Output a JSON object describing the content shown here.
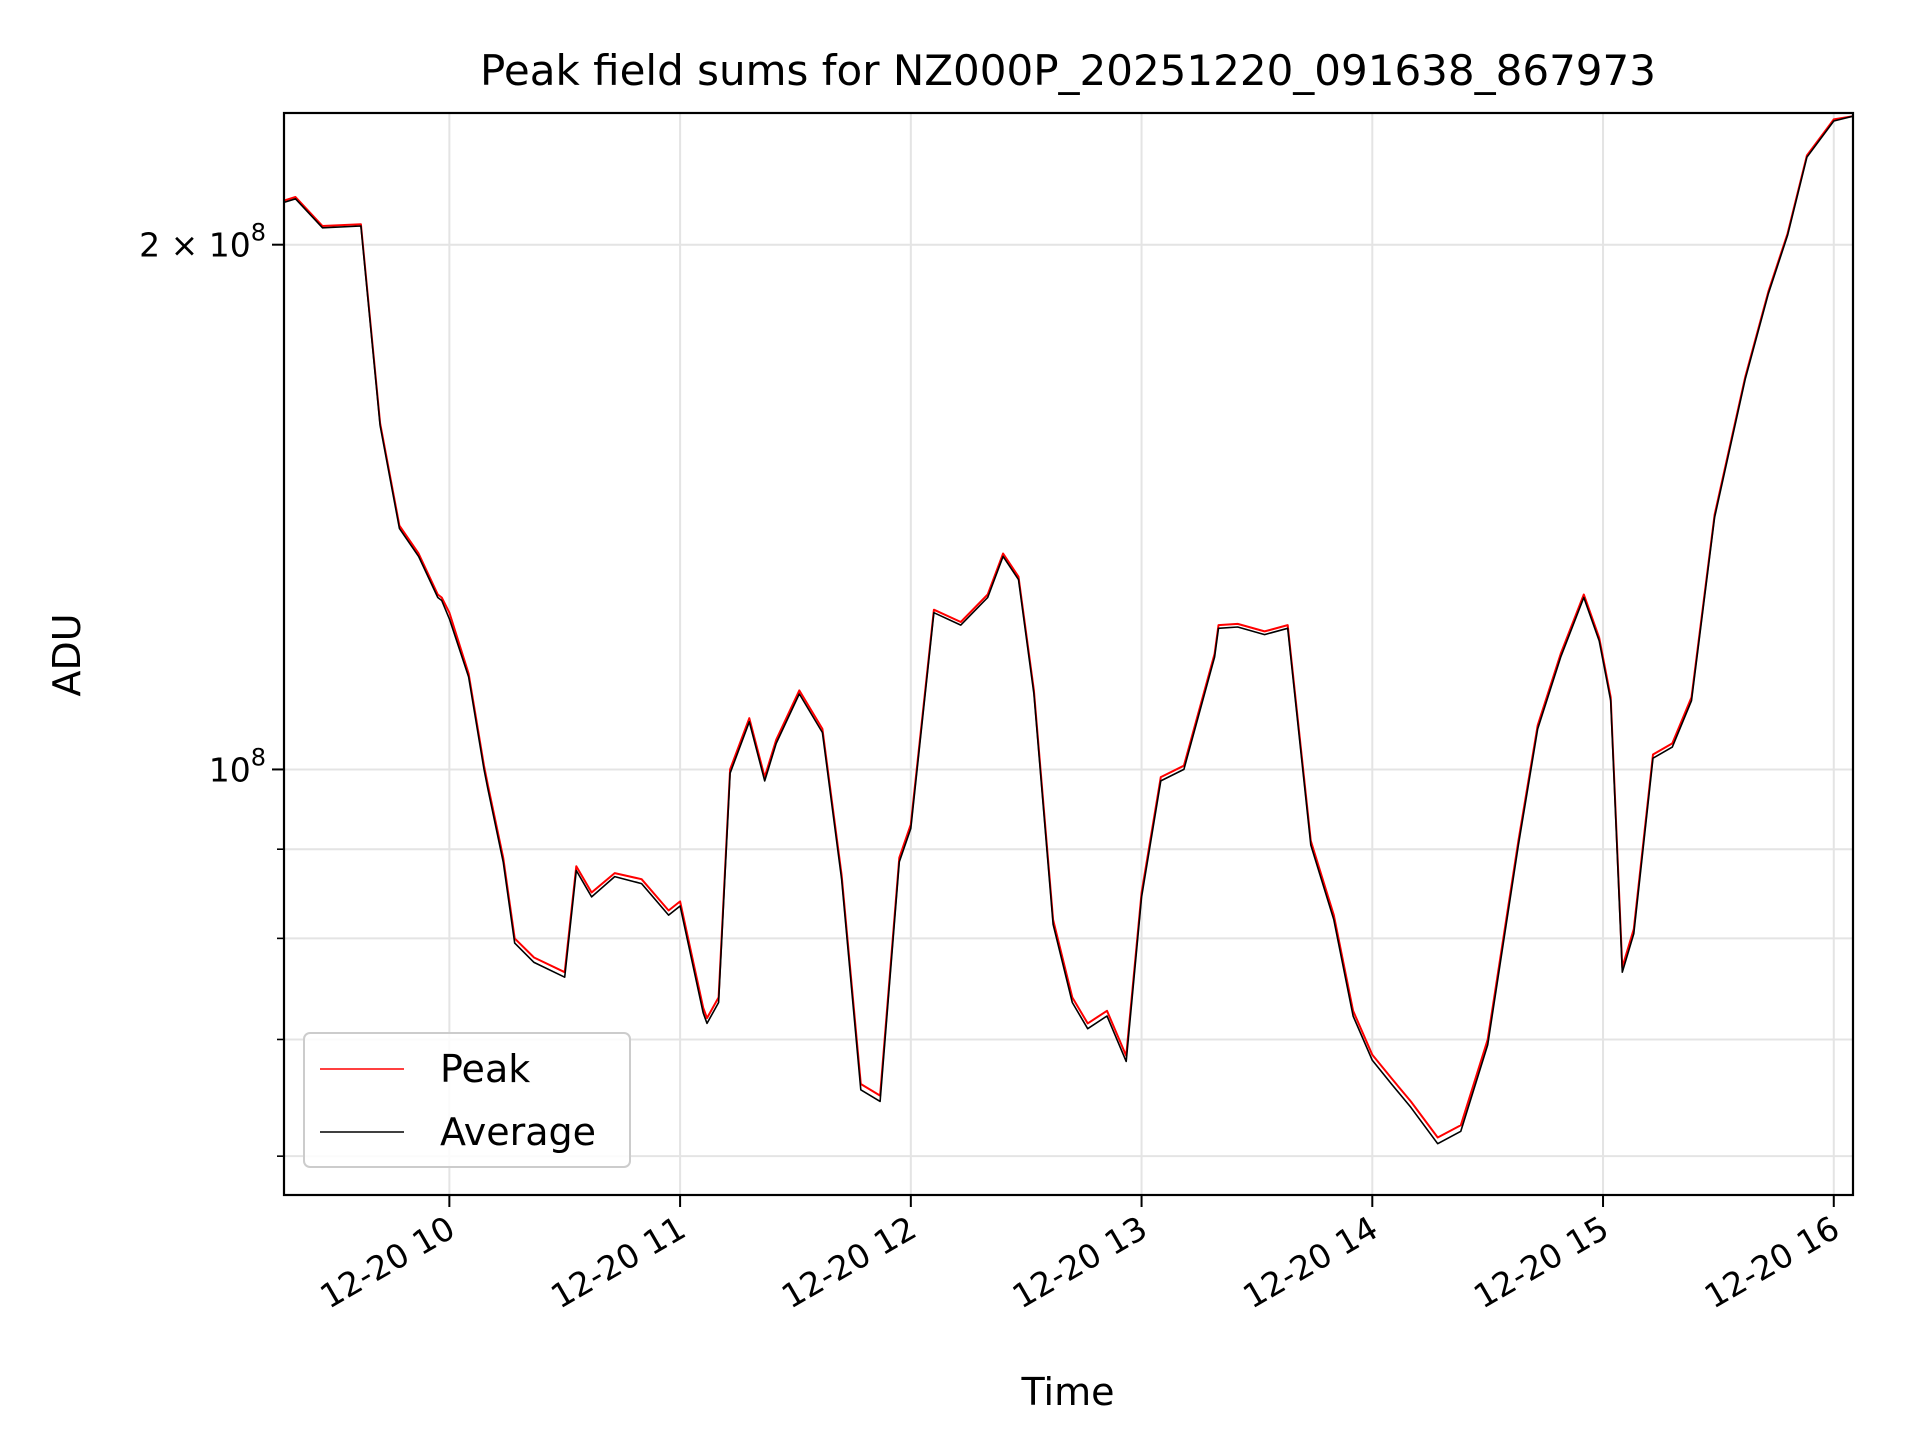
{
  "chart_data": {
    "type": "line",
    "title": "Peak field sums for NZ000P_20251220_091638_867973",
    "xlabel": "Time",
    "ylabel": "ADU",
    "yscale": "log",
    "ylim": [
      57000000,
      238000000
    ],
    "xlim": [
      "2025-12-20 09:17",
      "2025-12-20 16:05"
    ],
    "grid": true,
    "legend_position": "lower-left",
    "x_ticks": [
      {
        "x": "2025-12-20 10:00",
        "label": "12-20 10"
      },
      {
        "x": "2025-12-20 11:00",
        "label": "12-20 11"
      },
      {
        "x": "2025-12-20 12:00",
        "label": "12-20 12"
      },
      {
        "x": "2025-12-20 13:00",
        "label": "12-20 13"
      },
      {
        "x": "2025-12-20 14:00",
        "label": "12-20 14"
      },
      {
        "x": "2025-12-20 15:00",
        "label": "12-20 15"
      },
      {
        "x": "2025-12-20 16:00",
        "label": "12-20 16"
      }
    ],
    "y_major_ticks": [
      {
        "y": 100000000,
        "base": "10",
        "exp": "8"
      },
      {
        "y": 200000000,
        "base": "2 × 10",
        "exp": "8"
      }
    ],
    "y_minor_ticks": [
      60000000,
      70000000,
      80000000,
      90000000
    ],
    "x": [
      "2025-12-20 09:17",
      "2025-12-20 09:20",
      "2025-12-20 09:27",
      "2025-12-20 09:37",
      "2025-12-20 09:42",
      "2025-12-20 09:47",
      "2025-12-20 09:52",
      "2025-12-20 09:57",
      "2025-12-20 09:58",
      "2025-12-20 10:00",
      "2025-12-20 10:05",
      "2025-12-20 10:09",
      "2025-12-20 10:10",
      "2025-12-20 10:14",
      "2025-12-20 10:17",
      "2025-12-20 10:22",
      "2025-12-20 10:30",
      "2025-12-20 10:33",
      "2025-12-20 10:37",
      "2025-12-20 10:43",
      "2025-12-20 10:50",
      "2025-12-20 10:57",
      "2025-12-20 11:00",
      "2025-12-20 11:06",
      "2025-12-20 11:07",
      "2025-12-20 11:10",
      "2025-12-20 11:13",
      "2025-12-20 11:18",
      "2025-12-20 11:22",
      "2025-12-20 11:25",
      "2025-12-20 11:31",
      "2025-12-20 11:37",
      "2025-12-20 11:42",
      "2025-12-20 11:47",
      "2025-12-20 11:52",
      "2025-12-20 11:57",
      "2025-12-20 12:00",
      "2025-12-20 12:06",
      "2025-12-20 12:13",
      "2025-12-20 12:20",
      "2025-12-20 12:24",
      "2025-12-20 12:28",
      "2025-12-20 12:32",
      "2025-12-20 12:37",
      "2025-12-20 12:42",
      "2025-12-20 12:46",
      "2025-12-20 12:51",
      "2025-12-20 12:56",
      "2025-12-20 13:00",
      "2025-12-20 13:05",
      "2025-12-20 13:11",
      "2025-12-20 13:19",
      "2025-12-20 13:20",
      "2025-12-20 13:25",
      "2025-12-20 13:32",
      "2025-12-20 13:38",
      "2025-12-20 13:44",
      "2025-12-20 13:50",
      "2025-12-20 13:55",
      "2025-12-20 14:00",
      "2025-12-20 14:05",
      "2025-12-20 14:10",
      "2025-12-20 14:17",
      "2025-12-20 14:23",
      "2025-12-20 14:30",
      "2025-12-20 14:38",
      "2025-12-20 14:43",
      "2025-12-20 14:49",
      "2025-12-20 14:55",
      "2025-12-20 14:59",
      "2025-12-20 15:02",
      "2025-12-20 15:05",
      "2025-12-20 15:08",
      "2025-12-20 15:13",
      "2025-12-20 15:18",
      "2025-12-20 15:23",
      "2025-12-20 15:29",
      "2025-12-20 15:37",
      "2025-12-20 15:43",
      "2025-12-20 15:48",
      "2025-12-20 15:53",
      "2025-12-20 16:00",
      "2025-12-20 16:05"
    ],
    "series": [
      {
        "name": "Peak",
        "color": "#ff0000",
        "values": [
          212000000,
          213000000,
          205000000,
          205500000,
          158000000,
          138000000,
          133000000,
          126000000,
          125500000,
          123000000,
          113500000,
          100500000,
          98000000,
          89000000,
          80000000,
          78000000,
          76500000,
          88000000,
          85000000,
          87200000,
          86500000,
          83000000,
          84000000,
          73000000,
          72000000,
          74000000,
          100000000,
          107000000,
          99000000,
          104000000,
          111000000,
          105500000,
          87000000,
          66000000,
          65000000,
          89000000,
          93000000,
          123500000,
          121500000,
          126000000,
          133000000,
          129000000,
          111000000,
          82000000,
          74000000,
          71500000,
          72700000,
          68500000,
          85000000,
          99000000,
          100500000,
          116500000,
          121000000,
          121200000,
          120000000,
          121000000,
          91000000,
          82500000,
          72700000,
          68600000,
          66500000,
          64500000,
          61500000,
          62500000,
          70000000,
          91000000,
          106000000,
          116500000,
          126000000,
          119000000,
          110000000,
          77000000,
          81000000,
          102000000,
          103500000,
          110000000,
          140000000,
          168000000,
          188000000,
          203000000,
          225000000,
          236000000,
          237000000
        ]
      },
      {
        "name": "Average",
        "color": "#000000",
        "values": [
          211500000,
          212500000,
          204500000,
          205000000,
          157500000,
          137500000,
          132500000,
          125500000,
          125000000,
          122000000,
          113000000,
          100000000,
          97500000,
          88500000,
          79500000,
          77500000,
          76000000,
          87500000,
          84500000,
          86800000,
          86000000,
          82500000,
          83500000,
          72500000,
          71500000,
          73500000,
          99500000,
          106500000,
          98500000,
          103500000,
          110500000,
          105000000,
          86500000,
          65500000,
          64500000,
          88500000,
          92500000,
          123000000,
          121000000,
          125500000,
          132500000,
          128500000,
          110500000,
          81500000,
          73500000,
          71000000,
          72200000,
          68000000,
          84500000,
          98500000,
          100000000,
          116000000,
          120500000,
          120700000,
          119500000,
          120500000,
          90500000,
          82000000,
          72200000,
          68100000,
          66000000,
          64000000,
          61000000,
          62000000,
          69500000,
          90500000,
          105500000,
          116000000,
          125500000,
          118500000,
          109500000,
          76500000,
          80500000,
          101500000,
          103000000,
          109500000,
          139500000,
          167500000,
          187500000,
          202500000,
          224500000,
          235500000,
          237000000
        ]
      }
    ]
  }
}
